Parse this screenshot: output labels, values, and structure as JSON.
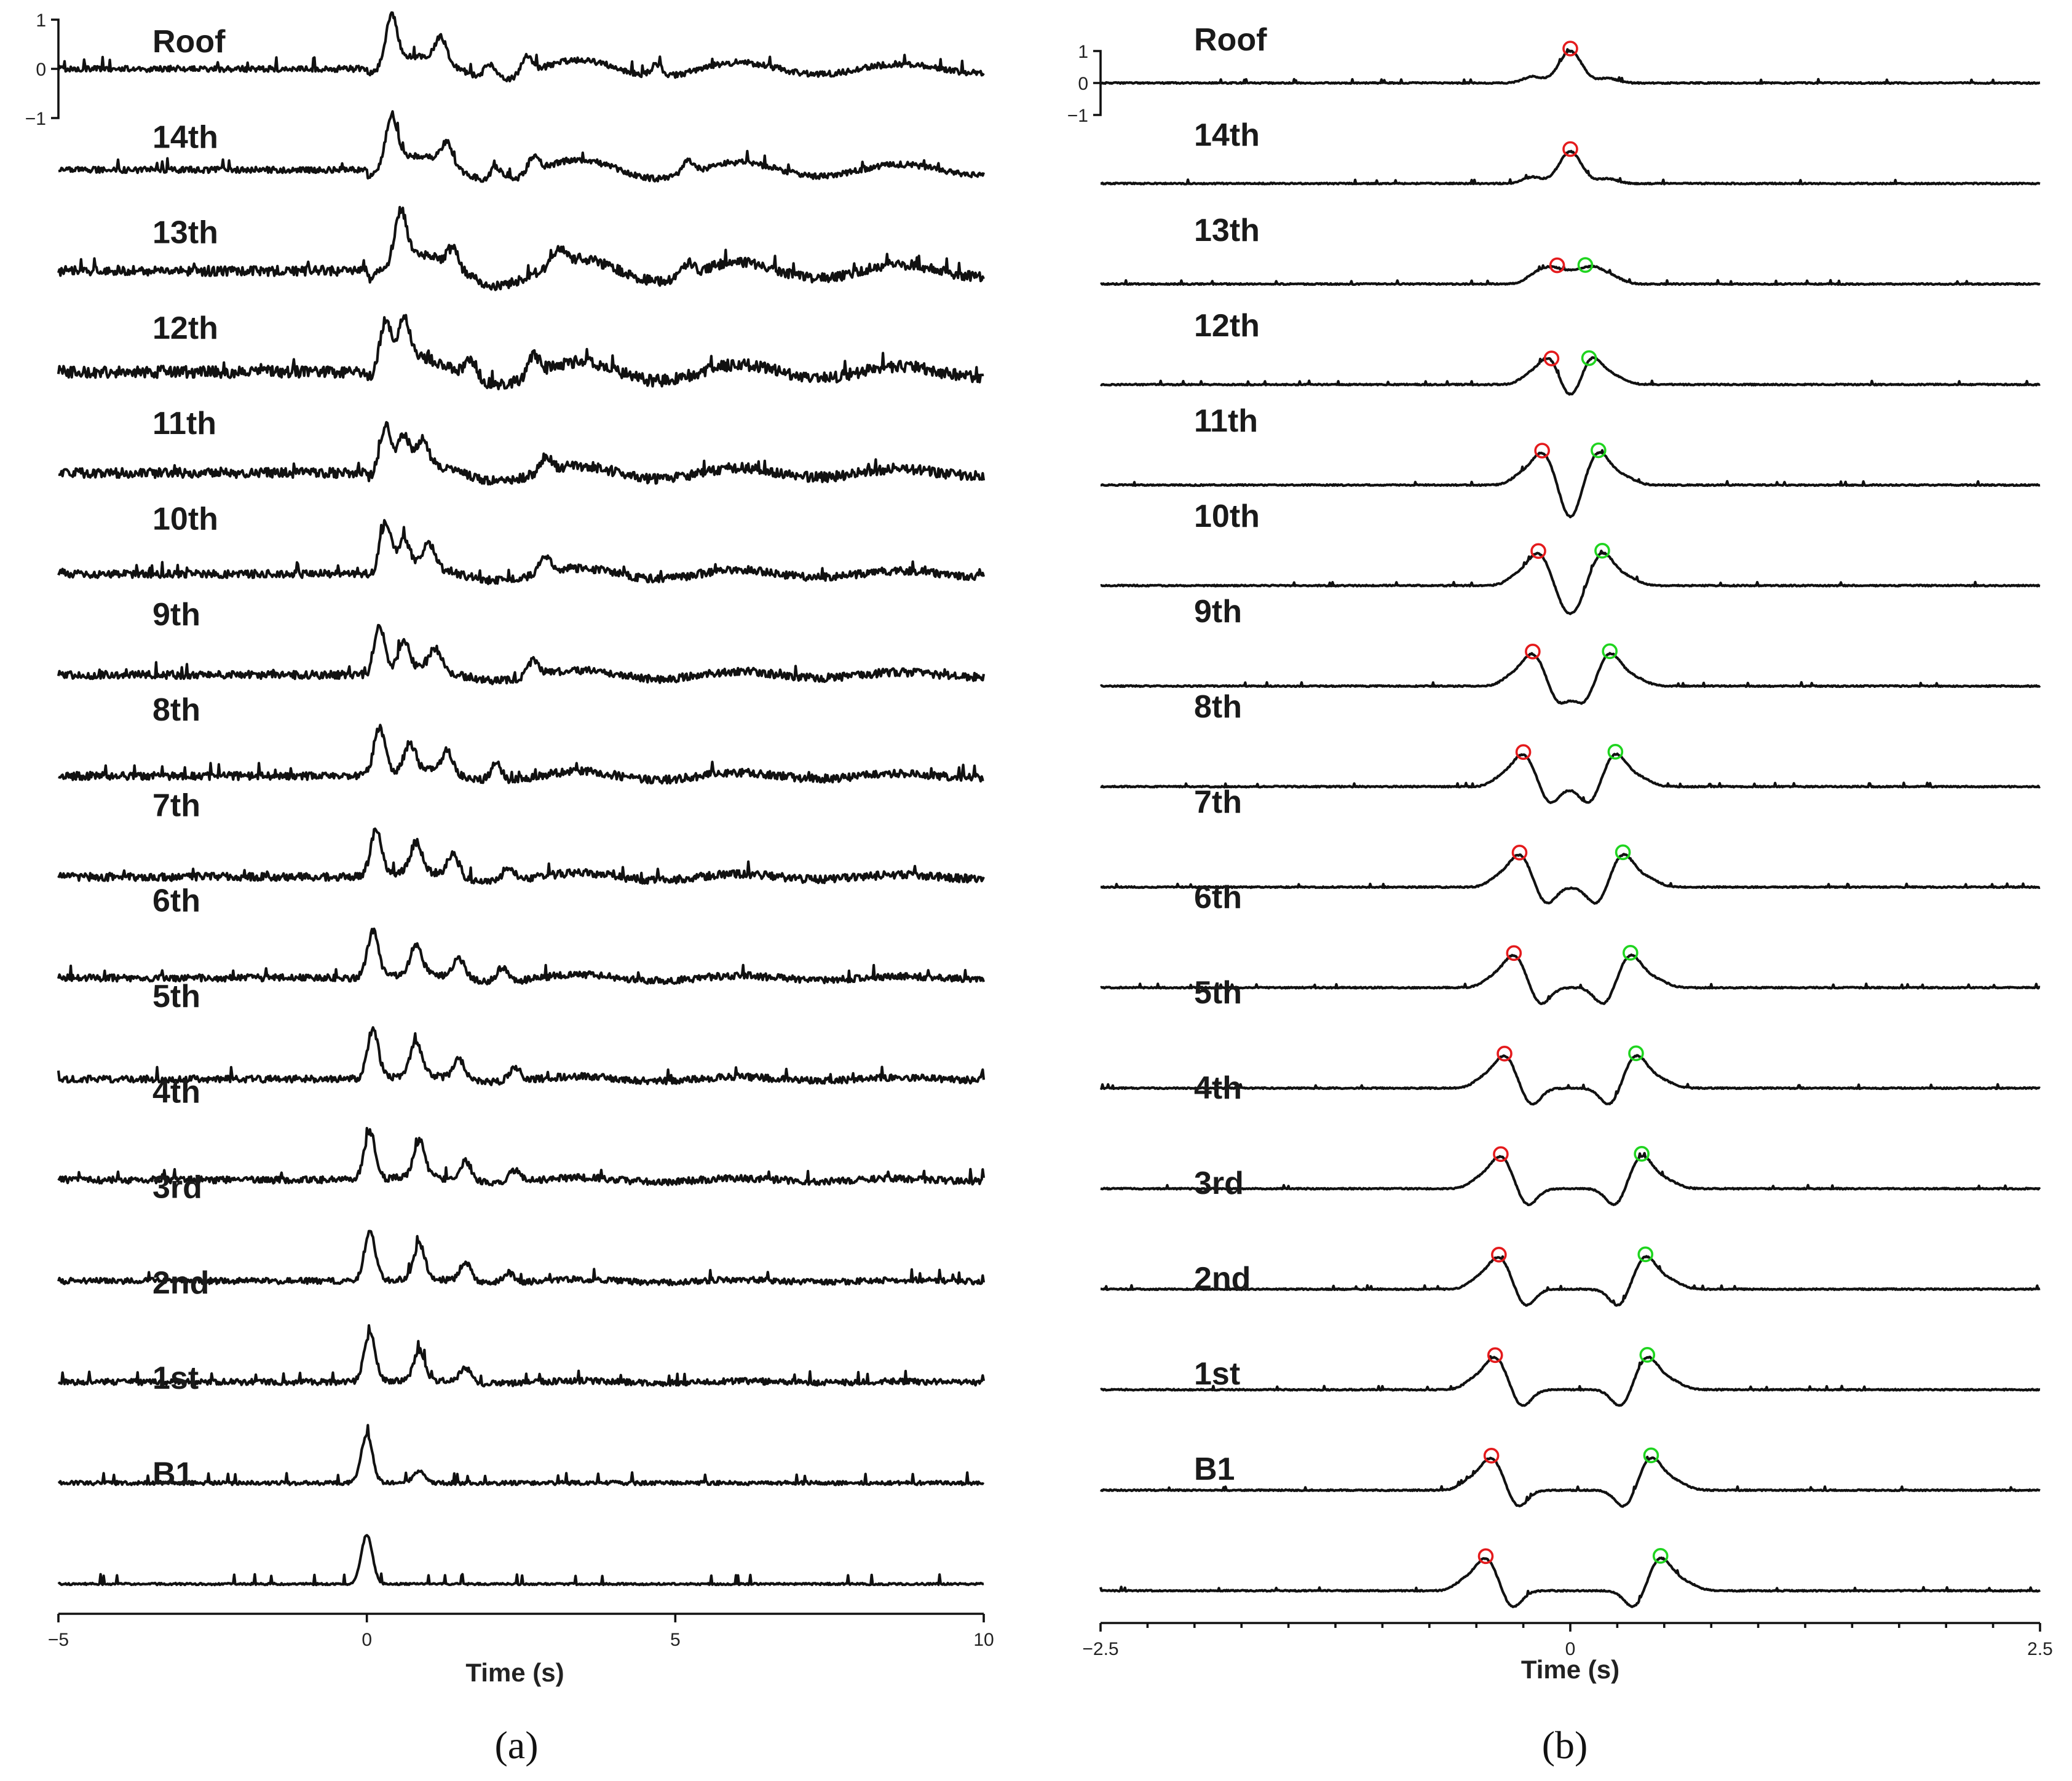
{
  "chart_data": [
    {
      "panel": "a",
      "type": "line",
      "caption": "(a)",
      "xlabel": "Time (s)",
      "xlim": [
        -5,
        10
      ],
      "xticks": [
        "−5",
        "0",
        "5",
        "10"
      ],
      "scale_bar": {
        "ticks": [
          "1",
          "0",
          "−1"
        ],
        "range": [
          -1,
          1
        ]
      },
      "series": [
        {
          "name": "Roof",
          "label": "Roof",
          "pulses": [
            [
              0.4,
              1.0
            ],
            [
              1.2,
              0.5
            ],
            [
              2.0,
              0.3
            ],
            [
              2.6,
              0.35
            ],
            [
              4.7,
              0.25
            ]
          ],
          "wave_amp": 0.28,
          "noise": 0.06
        },
        {
          "name": "14th",
          "label": "14th",
          "pulses": [
            [
              0.4,
              1.0
            ],
            [
              1.3,
              0.45
            ],
            [
              2.1,
              0.3
            ],
            [
              2.7,
              0.35
            ],
            [
              5.2,
              0.25
            ]
          ],
          "wave_amp": 0.32,
          "noise": 0.06
        },
        {
          "name": "13th",
          "label": "13th",
          "pulses": [
            [
              0.55,
              1.0
            ],
            [
              1.4,
              0.4
            ],
            [
              3.1,
              0.3
            ],
            [
              5.2,
              0.25
            ]
          ],
          "wave_amp": 0.38,
          "noise": 0.1
        },
        {
          "name": "12th",
          "label": "12th",
          "pulses": [
            [
              0.3,
              0.95
            ],
            [
              0.6,
              0.95
            ],
            [
              1.7,
              0.35
            ],
            [
              2.7,
              0.4
            ]
          ],
          "wave_amp": 0.32,
          "noise": 0.12
        },
        {
          "name": "11th",
          "label": "11th",
          "pulses": [
            [
              0.3,
              0.9
            ],
            [
              0.6,
              0.6
            ],
            [
              0.9,
              0.5
            ],
            [
              2.9,
              0.3
            ]
          ],
          "wave_amp": 0.22,
          "noise": 0.1
        },
        {
          "name": "10th",
          "label": "10th",
          "pulses": [
            [
              0.3,
              1.0
            ],
            [
              0.6,
              0.6
            ],
            [
              1.0,
              0.5
            ],
            [
              2.9,
              0.35
            ]
          ],
          "wave_amp": 0.18,
          "noise": 0.08
        },
        {
          "name": "9th",
          "label": "9th",
          "pulses": [
            [
              0.2,
              1.0
            ],
            [
              0.6,
              0.55
            ],
            [
              1.1,
              0.45
            ],
            [
              2.7,
              0.35
            ]
          ],
          "wave_amp": 0.15,
          "noise": 0.08
        },
        {
          "name": "8th",
          "label": "8th",
          "pulses": [
            [
              0.2,
              1.0
            ],
            [
              0.7,
              0.55
            ],
            [
              1.3,
              0.45
            ],
            [
              2.1,
              0.35
            ]
          ],
          "wave_amp": 0.14,
          "noise": 0.08
        },
        {
          "name": "7th",
          "label": "7th",
          "pulses": [
            [
              0.15,
              1.0
            ],
            [
              0.8,
              0.6
            ],
            [
              1.4,
              0.45
            ],
            [
              2.3,
              0.3
            ]
          ],
          "wave_amp": 0.12,
          "noise": 0.08
        },
        {
          "name": "6th",
          "label": "6th",
          "pulses": [
            [
              0.1,
              1.0
            ],
            [
              0.8,
              0.6
            ],
            [
              1.5,
              0.4
            ],
            [
              2.2,
              0.3
            ]
          ],
          "wave_amp": 0.1,
          "noise": 0.07
        },
        {
          "name": "5th",
          "label": "5th",
          "pulses": [
            [
              0.1,
              1.0
            ],
            [
              0.8,
              0.7
            ],
            [
              1.5,
              0.4
            ],
            [
              2.4,
              0.3
            ]
          ],
          "wave_amp": 0.08,
          "noise": 0.07
        },
        {
          "name": "4th",
          "label": "4th",
          "pulses": [
            [
              0.05,
              1.0
            ],
            [
              0.85,
              0.75
            ],
            [
              1.6,
              0.4
            ],
            [
              2.4,
              0.25
            ]
          ],
          "wave_amp": 0.07,
          "noise": 0.07
        },
        {
          "name": "3rd",
          "label": "3rd",
          "pulses": [
            [
              0.05,
              1.0
            ],
            [
              0.85,
              0.7
            ],
            [
              1.6,
              0.4
            ],
            [
              2.3,
              0.2
            ]
          ],
          "wave_amp": 0.05,
          "noise": 0.06
        },
        {
          "name": "2nd",
          "label": "2nd",
          "pulses": [
            [
              0.05,
              1.0
            ],
            [
              0.85,
              0.6
            ],
            [
              1.6,
              0.3
            ]
          ],
          "wave_amp": 0.04,
          "noise": 0.06
        },
        {
          "name": "1st",
          "label": "1st",
          "pulses": [
            [
              0.0,
              1.0
            ],
            [
              0.85,
              0.25
            ]
          ],
          "wave_amp": 0.0,
          "noise": 0.04
        },
        {
          "name": "B1",
          "label": "B1",
          "pulses": [
            [
              0.0,
              1.0
            ]
          ],
          "wave_amp": 0.0,
          "noise": 0.02
        }
      ]
    },
    {
      "panel": "b",
      "type": "line",
      "caption": "(b)",
      "xlabel": "Time (s)",
      "xlim": [
        -2.5,
        2.5
      ],
      "xticks": [
        "−2.5",
        "0",
        "2.5"
      ],
      "scale_bar": {
        "ticks": [
          "1",
          "0",
          "−1"
        ],
        "range": [
          -1,
          1
        ]
      },
      "marker_colors": {
        "red": "#e41a1c",
        "green": "#1fd41f"
      },
      "series": [
        {
          "name": "Roof",
          "label": "Roof",
          "red_peak": 0.0,
          "green_peak": null
        },
        {
          "name": "14th",
          "label": "14th",
          "red_peak": 0.0,
          "green_peak": null
        },
        {
          "name": "13th",
          "label": "13th",
          "red_peak": -0.07,
          "green_peak": 0.08
        },
        {
          "name": "12th",
          "label": "12th",
          "red_peak": -0.1,
          "green_peak": 0.1
        },
        {
          "name": "11th",
          "label": "11th",
          "red_peak": -0.15,
          "green_peak": 0.15
        },
        {
          "name": "10th",
          "label": "10th",
          "red_peak": -0.17,
          "green_peak": 0.17
        },
        {
          "name": "9th",
          "label": "9th",
          "red_peak": -0.2,
          "green_peak": 0.21
        },
        {
          "name": "8th",
          "label": "8th",
          "red_peak": -0.25,
          "green_peak": 0.24
        },
        {
          "name": "7th",
          "label": "7th",
          "red_peak": -0.27,
          "green_peak": 0.28
        },
        {
          "name": "6th",
          "label": "6th",
          "red_peak": -0.3,
          "green_peak": 0.32
        },
        {
          "name": "5th",
          "label": "5th",
          "red_peak": -0.35,
          "green_peak": 0.35
        },
        {
          "name": "4th",
          "label": "4th",
          "red_peak": -0.37,
          "green_peak": 0.38
        },
        {
          "name": "3rd",
          "label": "3rd",
          "red_peak": -0.38,
          "green_peak": 0.4
        },
        {
          "name": "2nd",
          "label": "2nd",
          "red_peak": -0.4,
          "green_peak": 0.41
        },
        {
          "name": "1st",
          "label": "1st",
          "red_peak": -0.42,
          "green_peak": 0.43
        },
        {
          "name": "B1",
          "label": "B1",
          "red_peak": -0.45,
          "green_peak": 0.48
        }
      ]
    }
  ]
}
